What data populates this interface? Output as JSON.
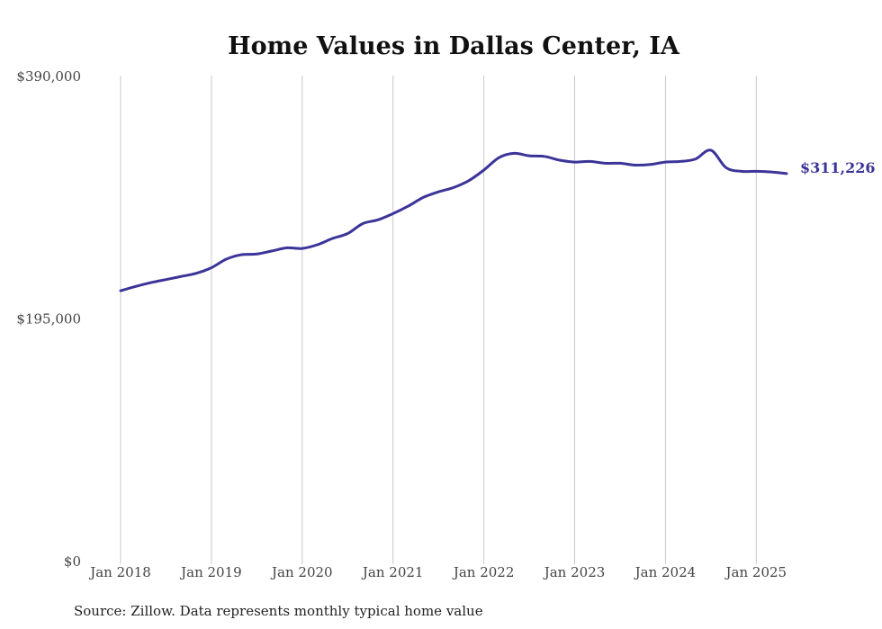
{
  "chart_data": {
    "type": "line",
    "title": "Home Values in Dallas Center, IA",
    "source": "Source: Zillow. Data represents monthly typical home value",
    "ylim": [
      0,
      390000
    ],
    "y_ticks": [
      {
        "value": 390000,
        "label": "$390,000"
      },
      {
        "value": 195000,
        "label": "$195,000"
      },
      {
        "value": 0,
        "label": "$0"
      }
    ],
    "x_ticks": [
      {
        "value": "2018-01",
        "label": "Jan 2018"
      },
      {
        "value": "2019-01",
        "label": "Jan 2019"
      },
      {
        "value": "2020-01",
        "label": "Jan 2020"
      },
      {
        "value": "2021-01",
        "label": "Jan 2021"
      },
      {
        "value": "2022-01",
        "label": "Jan 2022"
      },
      {
        "value": "2023-01",
        "label": "Jan 2023"
      },
      {
        "value": "2024-01",
        "label": "Jan 2024"
      },
      {
        "value": "2025-01",
        "label": "Jan 2025"
      }
    ],
    "grid": {
      "vertical": true,
      "horizontal": false
    },
    "line_color": "#3b3499",
    "end_label": "$311,226",
    "series": [
      {
        "x": [
          "2018-01",
          "2018-03",
          "2018-05",
          "2018-07",
          "2018-09",
          "2018-11",
          "2019-01",
          "2019-03",
          "2019-05",
          "2019-07",
          "2019-09",
          "2019-11",
          "2020-01",
          "2020-03",
          "2020-05",
          "2020-07",
          "2020-09",
          "2020-11",
          "2021-01",
          "2021-03",
          "2021-05",
          "2021-07",
          "2021-09",
          "2021-11",
          "2022-01",
          "2022-03",
          "2022-05",
          "2022-07",
          "2022-09",
          "2022-11",
          "2023-01",
          "2023-03",
          "2023-05",
          "2023-07",
          "2023-09",
          "2023-11",
          "2024-01",
          "2024-03",
          "2024-05",
          "2024-07",
          "2024-09",
          "2024-11",
          "2025-01",
          "2025-03",
          "2025-05"
        ],
        "y": [
          217000,
          220500,
          223500,
          226000,
          228500,
          231000,
          235500,
          242500,
          246000,
          246500,
          249000,
          251500,
          251000,
          254000,
          259000,
          263000,
          271000,
          274000,
          279000,
          285000,
          292000,
          296500,
          300000,
          305500,
          314000,
          324000,
          327500,
          325500,
          325000,
          322000,
          320500,
          321000,
          319500,
          319500,
          318000,
          318500,
          320500,
          321000,
          323000,
          330000,
          316000,
          313000,
          313000,
          312500,
          311226
        ]
      }
    ]
  }
}
